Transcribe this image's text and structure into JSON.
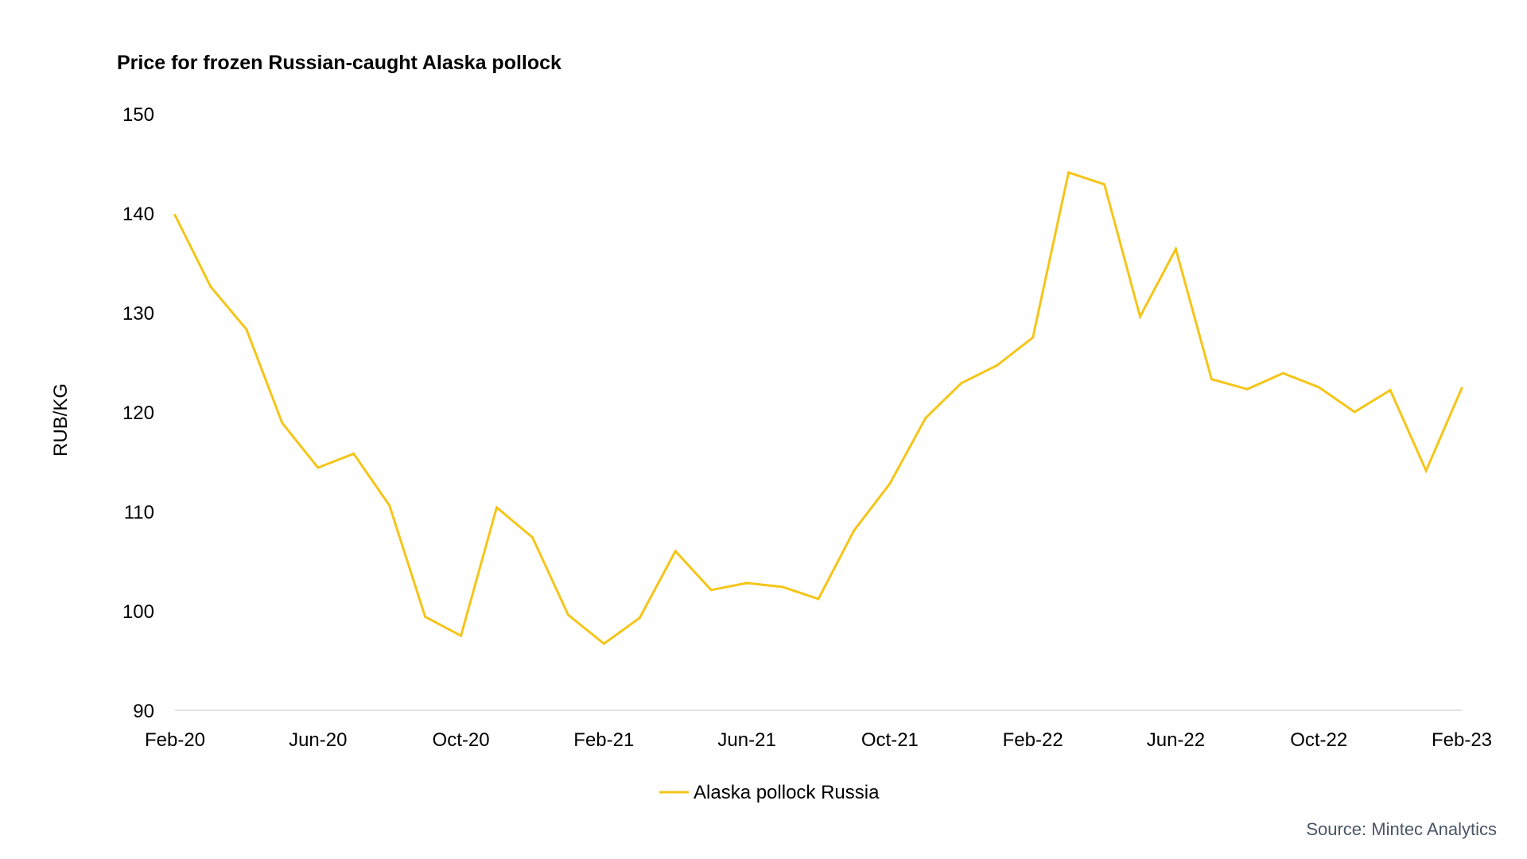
{
  "chart_data": {
    "type": "line",
    "title": "Price for frozen Russian-caught Alaska pollock",
    "xlabel": "",
    "ylabel": "RUB/KG",
    "ylim": [
      90,
      150
    ],
    "yticks": [
      90,
      100,
      110,
      120,
      130,
      140,
      150
    ],
    "grid": false,
    "legend_position": "bottom",
    "x_tick_labels": [
      "Feb-20",
      "Jun-20",
      "Oct-20",
      "Feb-21",
      "Jun-21",
      "Oct-21",
      "Feb-22",
      "Jun-22",
      "Oct-22",
      "Feb-23"
    ],
    "x": [
      "Feb-20",
      "Mar-20",
      "Apr-20",
      "May-20",
      "Jun-20",
      "Jul-20",
      "Aug-20",
      "Sep-20",
      "Oct-20",
      "Nov-20",
      "Dec-20",
      "Jan-21",
      "Feb-21",
      "Mar-21",
      "Apr-21",
      "May-21",
      "Jun-21",
      "Jul-21",
      "Aug-21",
      "Sep-21",
      "Oct-21",
      "Nov-21",
      "Dec-21",
      "Jan-22",
      "Feb-22",
      "Mar-22",
      "Apr-22",
      "May-22",
      "Jun-22",
      "Jul-22",
      "Aug-22",
      "Sep-22",
      "Oct-22",
      "Nov-22",
      "Dec-22",
      "Jan-23",
      "Feb-23"
    ],
    "series": [
      {
        "name": "Alaska pollock Russia",
        "color": "#F5C518",
        "values": [
          139.8,
          132.6,
          128.3,
          118.9,
          114.4,
          115.8,
          110.6,
          99.4,
          97.5,
          110.4,
          107.4,
          99.6,
          96.7,
          99.3,
          106.0,
          102.1,
          102.8,
          102.4,
          101.2,
          108.1,
          112.8,
          119.4,
          122.9,
          124.7,
          127.5,
          144.1,
          142.9,
          129.6,
          136.4,
          123.3,
          122.3,
          123.9,
          122.5,
          120.0,
          122.2,
          114.1,
          122.4
        ]
      }
    ],
    "source": "Source: Mintec Analytics"
  }
}
